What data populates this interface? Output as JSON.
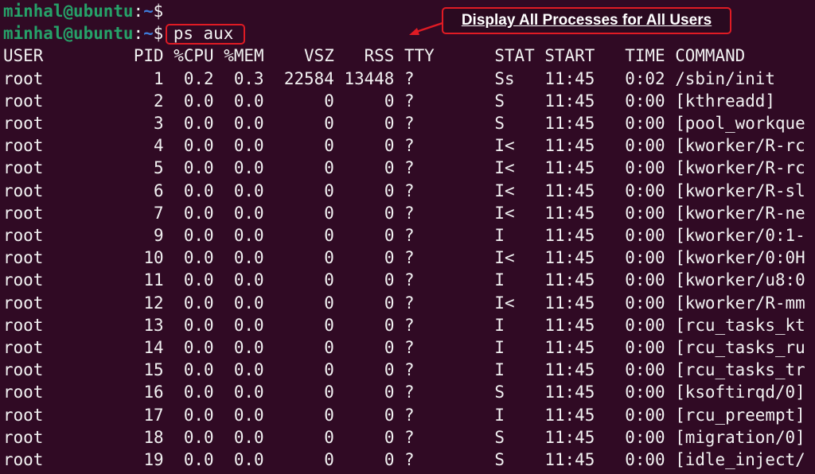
{
  "prompt": {
    "user_host": "minhal@ubuntu",
    "colon": ":",
    "path": "~",
    "symbol": "$"
  },
  "command": "ps aux",
  "annotation": {
    "text": "Display All Processes for All Users",
    "color": "#e01b24"
  },
  "colors": {
    "background": "#300a24",
    "prompt_user": "#26a269",
    "prompt_path": "#3d7bd9",
    "text": "#f2f2f2"
  },
  "table": {
    "headers": [
      "USER",
      "PID",
      "%CPU",
      "%MEM",
      "VSZ",
      "RSS",
      "TTY",
      "STAT",
      "START",
      "TIME",
      "COMMAND"
    ],
    "rows": [
      [
        "root",
        "1",
        "0.2",
        "0.3",
        "22584",
        "13448",
        "?",
        "Ss",
        "11:45",
        "0:02",
        "/sbin/init"
      ],
      [
        "root",
        "2",
        "0.0",
        "0.0",
        "0",
        "0",
        "?",
        "S",
        "11:45",
        "0:00",
        "[kthreadd]"
      ],
      [
        "root",
        "3",
        "0.0",
        "0.0",
        "0",
        "0",
        "?",
        "S",
        "11:45",
        "0:00",
        "[pool_workque"
      ],
      [
        "root",
        "4",
        "0.0",
        "0.0",
        "0",
        "0",
        "?",
        "I<",
        "11:45",
        "0:00",
        "[kworker/R-rc"
      ],
      [
        "root",
        "5",
        "0.0",
        "0.0",
        "0",
        "0",
        "?",
        "I<",
        "11:45",
        "0:00",
        "[kworker/R-rc"
      ],
      [
        "root",
        "6",
        "0.0",
        "0.0",
        "0",
        "0",
        "?",
        "I<",
        "11:45",
        "0:00",
        "[kworker/R-sl"
      ],
      [
        "root",
        "7",
        "0.0",
        "0.0",
        "0",
        "0",
        "?",
        "I<",
        "11:45",
        "0:00",
        "[kworker/R-ne"
      ],
      [
        "root",
        "9",
        "0.0",
        "0.0",
        "0",
        "0",
        "?",
        "I",
        "11:45",
        "0:00",
        "[kworker/0:1-"
      ],
      [
        "root",
        "10",
        "0.0",
        "0.0",
        "0",
        "0",
        "?",
        "I<",
        "11:45",
        "0:00",
        "[kworker/0:0H"
      ],
      [
        "root",
        "11",
        "0.0",
        "0.0",
        "0",
        "0",
        "?",
        "I",
        "11:45",
        "0:00",
        "[kworker/u8:0"
      ],
      [
        "root",
        "12",
        "0.0",
        "0.0",
        "0",
        "0",
        "?",
        "I<",
        "11:45",
        "0:00",
        "[kworker/R-mm"
      ],
      [
        "root",
        "13",
        "0.0",
        "0.0",
        "0",
        "0",
        "?",
        "I",
        "11:45",
        "0:00",
        "[rcu_tasks_kt"
      ],
      [
        "root",
        "14",
        "0.0",
        "0.0",
        "0",
        "0",
        "?",
        "I",
        "11:45",
        "0:00",
        "[rcu_tasks_ru"
      ],
      [
        "root",
        "15",
        "0.0",
        "0.0",
        "0",
        "0",
        "?",
        "I",
        "11:45",
        "0:00",
        "[rcu_tasks_tr"
      ],
      [
        "root",
        "16",
        "0.0",
        "0.0",
        "0",
        "0",
        "?",
        "S",
        "11:45",
        "0:00",
        "[ksoftirqd/0]"
      ],
      [
        "root",
        "17",
        "0.0",
        "0.0",
        "0",
        "0",
        "?",
        "I",
        "11:45",
        "0:00",
        "[rcu_preempt]"
      ],
      [
        "root",
        "18",
        "0.0",
        "0.0",
        "0",
        "0",
        "?",
        "S",
        "11:45",
        "0:00",
        "[migration/0]"
      ],
      [
        "root",
        "19",
        "0.0",
        "0.0",
        "0",
        "0",
        "?",
        "S",
        "11:45",
        "0:00",
        "[idle_inject/"
      ]
    ]
  }
}
